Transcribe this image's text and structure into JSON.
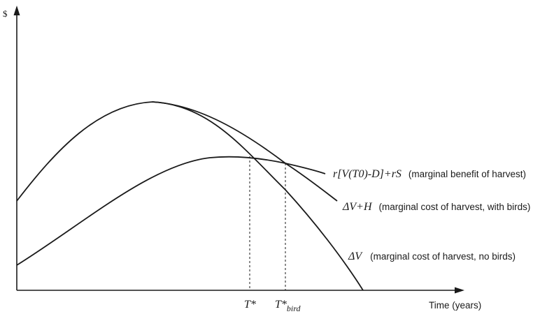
{
  "axes": {
    "y_label": "$",
    "x_label": "Time (years)"
  },
  "curves": {
    "benefit": {
      "formula": "r[V(T0)-D]+rS",
      "description": "(marginal benefit of harvest)"
    },
    "cost_birds": {
      "formula": "ΔV+H",
      "description": "(marginal cost of harvest, with birds)"
    },
    "cost_nobirds": {
      "formula": "ΔV",
      "description": "(marginal cost of harvest, no birds)"
    }
  },
  "ticks": {
    "t_star": "T*",
    "t_bird_main": "T*",
    "t_bird_sub": "bird"
  }
}
